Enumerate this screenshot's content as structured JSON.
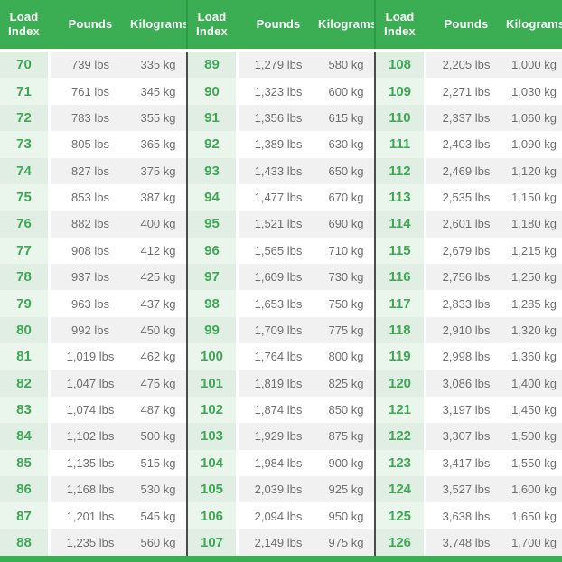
{
  "colors": {
    "header_green": "#3BAE54",
    "header_divider_green": "#2D9A45",
    "load_index_column_bg": "#EAF5EC",
    "load_index_column_bg_striped": "#E0EEE4",
    "stripe_gray": "#F1F1F1",
    "group_divider_dark": "#4B4B4B",
    "value_text_gray": "#6E6E6E",
    "load_index_text_green": "#3FA855",
    "bottom_bar_green": "#3BAE54"
  },
  "chart_data": {
    "type": "table",
    "headers": {
      "load_index": "Load\nIndex",
      "pounds": "Pounds",
      "kilograms": "Kilograms"
    },
    "groups": [
      {
        "rows": [
          {
            "index": "70",
            "pounds": "739 lbs",
            "kilograms": "335 kg"
          },
          {
            "index": "71",
            "pounds": "761 lbs",
            "kilograms": "345 kg"
          },
          {
            "index": "72",
            "pounds": "783 lbs",
            "kilograms": "355 kg"
          },
          {
            "index": "73",
            "pounds": "805 lbs",
            "kilograms": "365 kg"
          },
          {
            "index": "74",
            "pounds": "827 lbs",
            "kilograms": "375 kg"
          },
          {
            "index": "75",
            "pounds": "853 lbs",
            "kilograms": "387 kg"
          },
          {
            "index": "76",
            "pounds": "882 lbs",
            "kilograms": "400 kg"
          },
          {
            "index": "77",
            "pounds": "908 lbs",
            "kilograms": "412 kg"
          },
          {
            "index": "78",
            "pounds": "937 lbs",
            "kilograms": "425 kg"
          },
          {
            "index": "79",
            "pounds": "963 lbs",
            "kilograms": "437 kg"
          },
          {
            "index": "80",
            "pounds": "992 lbs",
            "kilograms": "450 kg"
          },
          {
            "index": "81",
            "pounds": "1,019 lbs",
            "kilograms": "462 kg"
          },
          {
            "index": "82",
            "pounds": "1,047 lbs",
            "kilograms": "475 kg"
          },
          {
            "index": "83",
            "pounds": "1,074 lbs",
            "kilograms": "487 kg"
          },
          {
            "index": "84",
            "pounds": "1,102 lbs",
            "kilograms": "500 kg"
          },
          {
            "index": "85",
            "pounds": "1,135 lbs",
            "kilograms": "515 kg"
          },
          {
            "index": "86",
            "pounds": "1,168 lbs",
            "kilograms": "530 kg"
          },
          {
            "index": "87",
            "pounds": "1,201 lbs",
            "kilograms": "545 kg"
          },
          {
            "index": "88",
            "pounds": "1,235 lbs",
            "kilograms": "560 kg"
          }
        ]
      },
      {
        "rows": [
          {
            "index": "89",
            "pounds": "1,279 lbs",
            "kilograms": "580 kg"
          },
          {
            "index": "90",
            "pounds": "1,323 lbs",
            "kilograms": "600 kg"
          },
          {
            "index": "91",
            "pounds": "1,356 lbs",
            "kilograms": "615 kg"
          },
          {
            "index": "92",
            "pounds": "1,389 lbs",
            "kilograms": "630 kg"
          },
          {
            "index": "93",
            "pounds": "1,433 lbs",
            "kilograms": "650 kg"
          },
          {
            "index": "94",
            "pounds": "1,477 lbs",
            "kilograms": "670 kg"
          },
          {
            "index": "95",
            "pounds": "1,521 lbs",
            "kilograms": "690 kg"
          },
          {
            "index": "96",
            "pounds": "1,565 lbs",
            "kilograms": "710 kg"
          },
          {
            "index": "97",
            "pounds": "1,609 lbs",
            "kilograms": "730 kg"
          },
          {
            "index": "98",
            "pounds": "1,653 lbs",
            "kilograms": "750 kg"
          },
          {
            "index": "99",
            "pounds": "1,709 lbs",
            "kilograms": "775 kg"
          },
          {
            "index": "100",
            "pounds": "1,764 lbs",
            "kilograms": "800 kg"
          },
          {
            "index": "101",
            "pounds": "1,819 lbs",
            "kilograms": "825 kg"
          },
          {
            "index": "102",
            "pounds": "1,874 lbs",
            "kilograms": "850 kg"
          },
          {
            "index": "103",
            "pounds": "1,929 lbs",
            "kilograms": "875 kg"
          },
          {
            "index": "104",
            "pounds": "1,984 lbs",
            "kilograms": "900 kg"
          },
          {
            "index": "105",
            "pounds": "2,039 lbs",
            "kilograms": "925 kg"
          },
          {
            "index": "106",
            "pounds": "2,094 lbs",
            "kilograms": "950 kg"
          },
          {
            "index": "107",
            "pounds": "2,149 lbs",
            "kilograms": "975 kg"
          }
        ]
      },
      {
        "rows": [
          {
            "index": "108",
            "pounds": "2,205 lbs",
            "kilograms": "1,000 kg"
          },
          {
            "index": "109",
            "pounds": "2,271 lbs",
            "kilograms": "1,030 kg"
          },
          {
            "index": "110",
            "pounds": "2,337 lbs",
            "kilograms": "1,060 kg"
          },
          {
            "index": "111",
            "pounds": "2,403 lbs",
            "kilograms": "1,090 kg"
          },
          {
            "index": "112",
            "pounds": "2,469 lbs",
            "kilograms": "1,120 kg"
          },
          {
            "index": "113",
            "pounds": "2,535 lbs",
            "kilograms": "1,150 kg"
          },
          {
            "index": "114",
            "pounds": "2,601 lbs",
            "kilograms": "1,180 kg"
          },
          {
            "index": "115",
            "pounds": "2,679 lbs",
            "kilograms": "1,215 kg"
          },
          {
            "index": "116",
            "pounds": "2,756 lbs",
            "kilograms": "1,250 kg"
          },
          {
            "index": "117",
            "pounds": "2,833 lbs",
            "kilograms": "1,285 kg"
          },
          {
            "index": "118",
            "pounds": "2,910 lbs",
            "kilograms": "1,320 kg"
          },
          {
            "index": "119",
            "pounds": "2,998 lbs",
            "kilograms": "1,360 kg"
          },
          {
            "index": "120",
            "pounds": "3,086 lbs",
            "kilograms": "1,400 kg"
          },
          {
            "index": "121",
            "pounds": "3,197 lbs",
            "kilograms": "1,450 kg"
          },
          {
            "index": "122",
            "pounds": "3,307 lbs",
            "kilograms": "1,500 kg"
          },
          {
            "index": "123",
            "pounds": "3,417 lbs",
            "kilograms": "1,550 kg"
          },
          {
            "index": "124",
            "pounds": "3,527 lbs",
            "kilograms": "1,600 kg"
          },
          {
            "index": "125",
            "pounds": "3,638 lbs",
            "kilograms": "1,650 kg"
          },
          {
            "index": "126",
            "pounds": "3,748 lbs",
            "kilograms": "1,700 kg"
          }
        ]
      }
    ]
  }
}
